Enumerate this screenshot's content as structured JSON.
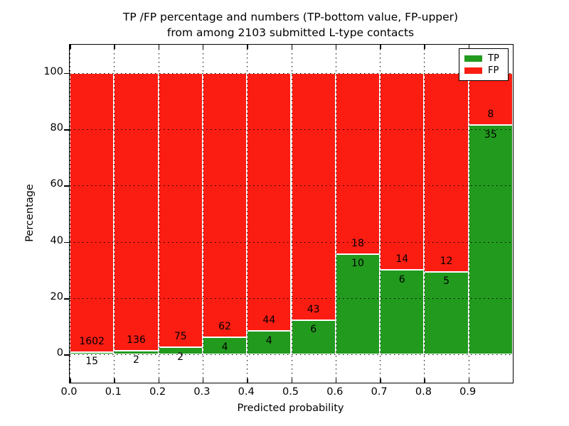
{
  "figure": {
    "title_line1": "TP /FP percentage and numbers (TP-bottom value, FP-upper)",
    "title_line2": "from among 2103 submitted L-type contacts"
  },
  "chart_data": {
    "type": "bar",
    "stacked": true,
    "title": "TP /FP percentage and numbers (TP-bottom value, FP-upper) from among 2103 submitted L-type contacts",
    "xlabel": "Predicted probability",
    "ylabel": "Percentage",
    "xlim": [
      0.0,
      1.0
    ],
    "ylim": [
      -10,
      110
    ],
    "grid": "dotted, drawn above bars",
    "x_tick_values": [
      0.0,
      0.1,
      0.2,
      0.3,
      0.4,
      0.5,
      0.6,
      0.7,
      0.8,
      0.9
    ],
    "x_tick_labels": [
      "0.0",
      "0.1",
      "0.2",
      "0.3",
      "0.4",
      "0.5",
      "0.6",
      "0.7",
      "0.8",
      "0.9"
    ],
    "y_tick_values": [
      0,
      20,
      40,
      60,
      80,
      100
    ],
    "y_tick_labels": [
      "0",
      "20",
      "40",
      "60",
      "80",
      "100"
    ],
    "total_contacts": 2103,
    "legend": {
      "position": "upper right",
      "entries": [
        {
          "label": "TP",
          "color": "#229a1e"
        },
        {
          "label": "FP",
          "color": "#fb1d12"
        }
      ]
    },
    "series_note": "TP green segment from 0 to tp_pct; FP red segment stacked from tp_pct to 100",
    "bins": [
      {
        "x_start": 0.0,
        "x_end": 0.1,
        "tp_count": 15,
        "fp_count": 1602,
        "tp_pct": 0.93,
        "fp_pct": 99.07
      },
      {
        "x_start": 0.1,
        "x_end": 0.2,
        "tp_count": 2,
        "fp_count": 136,
        "tp_pct": 1.45,
        "fp_pct": 98.55
      },
      {
        "x_start": 0.2,
        "x_end": 0.3,
        "tp_count": 2,
        "fp_count": 75,
        "tp_pct": 2.6,
        "fp_pct": 97.4
      },
      {
        "x_start": 0.3,
        "x_end": 0.4,
        "tp_count": 4,
        "fp_count": 62,
        "tp_pct": 6.06,
        "fp_pct": 93.94
      },
      {
        "x_start": 0.4,
        "x_end": 0.5,
        "tp_count": 4,
        "fp_count": 44,
        "tp_pct": 8.33,
        "fp_pct": 91.67
      },
      {
        "x_start": 0.5,
        "x_end": 0.6,
        "tp_count": 6,
        "fp_count": 43,
        "tp_pct": 12.24,
        "fp_pct": 87.76
      },
      {
        "x_start": 0.6,
        "x_end": 0.7,
        "tp_count": 10,
        "fp_count": 18,
        "tp_pct": 35.71,
        "fp_pct": 64.29
      },
      {
        "x_start": 0.7,
        "x_end": 0.8,
        "tp_count": 6,
        "fp_count": 14,
        "tp_pct": 30.0,
        "fp_pct": 70.0
      },
      {
        "x_start": 0.8,
        "x_end": 0.9,
        "tp_count": 5,
        "fp_count": 12,
        "tp_pct": 29.41,
        "fp_pct": 70.59
      },
      {
        "x_start": 0.9,
        "x_end": 1.0,
        "tp_count": 35,
        "fp_count": 8,
        "tp_pct": 81.4,
        "fp_pct": 18.6
      }
    ]
  }
}
